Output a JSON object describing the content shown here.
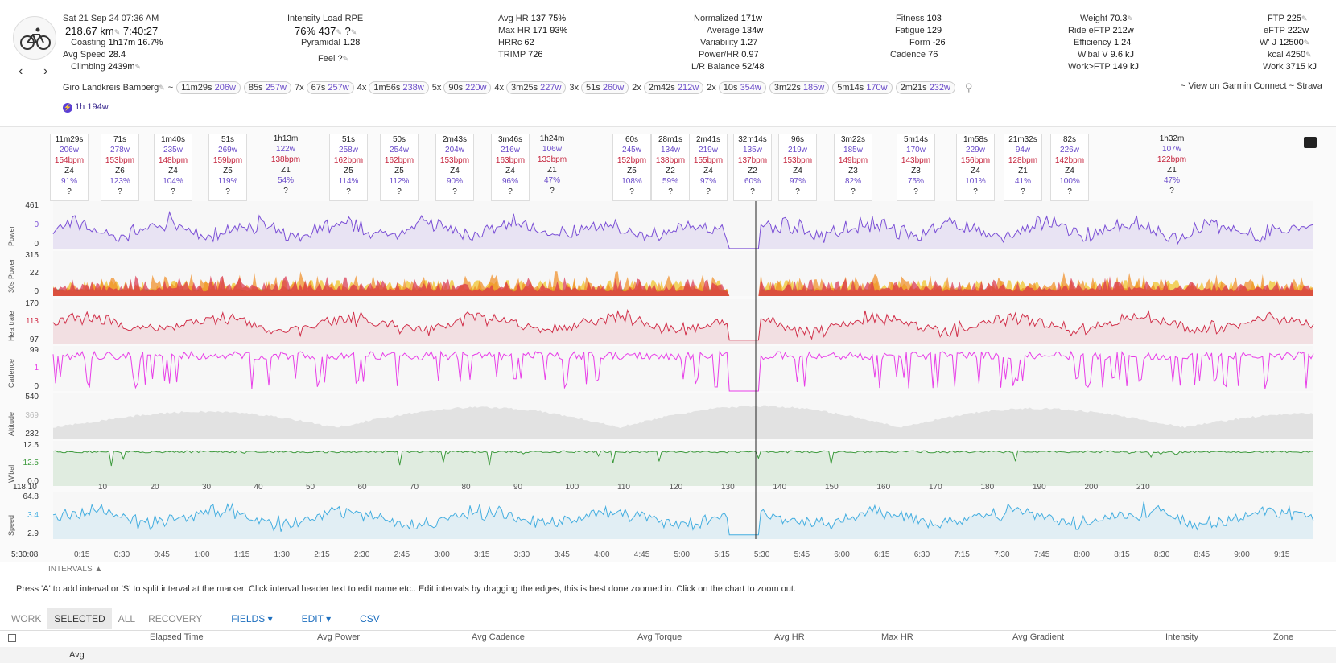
{
  "activity": {
    "date": "Sat 21 Sep 24",
    "time": "07:36 AM",
    "distance": "218.67 km",
    "moving_time": "7:40:27",
    "coasting_label": "Coasting",
    "coasting_time": "1h17m",
    "coasting_pct": "16.7%",
    "avg_speed_label": "Avg Speed",
    "avg_speed": "28.4",
    "climbing_label": "Climbing",
    "climbing": "2439m",
    "name": "Giro Landkreis Bamberg",
    "tilde": "~",
    "badge": "1h 194w"
  },
  "stats": {
    "intensity_label": "Intensity",
    "intensity": "76%",
    "load_label": "Load",
    "load": "437",
    "rpe_label": "RPE",
    "rpe": "?",
    "pyramidal_label": "Pyramidal",
    "pyramidal": "1.28",
    "feel_label": "Feel",
    "feel": "?",
    "avg_hr_label": "Avg HR",
    "avg_hr": "137",
    "avg_hr_pct": "75%",
    "max_hr_label": "Max HR",
    "max_hr": "171",
    "max_hr_pct": "93%",
    "hrrc_label": "HRRc",
    "hrrc": "62",
    "trimp_label": "TRIMP",
    "trimp": "726",
    "normalized_label": "Normalized",
    "normalized": "171w",
    "average_label": "Average",
    "average": "134w",
    "variability_label": "Variability",
    "variability": "1.27",
    "power_hr_label": "Power/HR",
    "power_hr": "0.97",
    "lr_label": "L/R Balance",
    "lr": "52/48",
    "fitness_label": "Fitness",
    "fitness": "103",
    "fatigue_label": "Fatigue",
    "fatigue": "129",
    "form_label": "Form",
    "form": "-26",
    "cadence_label": "Cadence",
    "cadence": "76",
    "weight_label": "Weight",
    "weight": "70.3",
    "ride_eftp_label": "Ride eFTP",
    "ride_eftp": "212w",
    "efficiency_label": "Efficiency",
    "efficiency": "1.24",
    "wbal_label": "W'bal ∇",
    "wbal": "9.6 kJ",
    "work_ftp_label": "Work>FTP",
    "work_ftp": "149 kJ",
    "ftp_label": "FTP",
    "ftp": "225",
    "eftp_label": "eFTP",
    "eftp": "222w",
    "wprime_label": "W' J",
    "wprime": "12500",
    "kcal_label": "kcal",
    "kcal": "4250",
    "work_label": "Work",
    "work": "3715 kJ"
  },
  "chips": [
    {
      "prefix": "",
      "dur": "11m29s",
      "w": "206w"
    },
    {
      "prefix": "",
      "dur": "85s",
      "w": "257w"
    },
    {
      "prefix": "7x",
      "dur": "67s",
      "w": "257w"
    },
    {
      "prefix": "4x",
      "dur": "1m56s",
      "w": "238w"
    },
    {
      "prefix": "5x",
      "dur": "90s",
      "w": "220w"
    },
    {
      "prefix": "4x",
      "dur": "3m25s",
      "w": "227w"
    },
    {
      "prefix": "3x",
      "dur": "51s",
      "w": "260w"
    },
    {
      "prefix": "2x",
      "dur": "2m42s",
      "w": "212w"
    },
    {
      "prefix": "2x",
      "dur": "10s",
      "w": "354w"
    },
    {
      "prefix": "",
      "dur": "3m22s",
      "w": "185w"
    },
    {
      "prefix": "",
      "dur": "5m14s",
      "w": "170w"
    },
    {
      "prefix": "",
      "dur": "2m21s",
      "w": "232w"
    }
  ],
  "links": {
    "view_on": "~ View on Garmin Connect ~ Strava"
  },
  "intervals": [
    {
      "dur": "11m29s",
      "w": "206w",
      "hr": "154bpm",
      "z": "Z4",
      "pct": "91%",
      "q": "?"
    },
    {
      "dur": "71s",
      "w": "278w",
      "hr": "153bpm",
      "z": "Z6",
      "pct": "123%",
      "q": "?"
    },
    {
      "dur": "1m40s",
      "w": "235w",
      "hr": "148bpm",
      "z": "Z4",
      "pct": "104%",
      "q": "?"
    },
    {
      "dur": "51s",
      "w": "269w",
      "hr": "159bpm",
      "z": "Z5",
      "pct": "119%",
      "q": "?"
    },
    {
      "dur": "1h13m",
      "w": "122w",
      "hr": "138bpm",
      "z": "Z1",
      "pct": "54%",
      "q": "?"
    },
    {
      "dur": "51s",
      "w": "258w",
      "hr": "162bpm",
      "z": "Z5",
      "pct": "114%",
      "q": "?"
    },
    {
      "dur": "50s",
      "w": "254w",
      "hr": "162bpm",
      "z": "Z5",
      "pct": "112%",
      "q": "?"
    },
    {
      "dur": "2m43s",
      "w": "204w",
      "hr": "153bpm",
      "z": "Z4",
      "pct": "90%",
      "q": "?"
    },
    {
      "dur": "3m46s",
      "w": "216w",
      "hr": "163bpm",
      "z": "Z4",
      "pct": "96%",
      "q": "?"
    },
    {
      "dur": "1h24m",
      "w": "106w",
      "hr": "133bpm",
      "z": "Z1",
      "pct": "47%",
      "q": "?"
    },
    {
      "dur": "60s",
      "w": "245w",
      "hr": "152bpm",
      "z": "Z5",
      "pct": "108%",
      "q": "?"
    },
    {
      "dur": "28m1s",
      "w": "134w",
      "hr": "138bpm",
      "z": "Z2",
      "pct": "59%",
      "q": "?"
    },
    {
      "dur": "2m41s",
      "w": "219w",
      "hr": "155bpm",
      "z": "Z4",
      "pct": "97%",
      "q": "?"
    },
    {
      "dur": "32m14s",
      "w": "135w",
      "hr": "137bpm",
      "z": "Z2",
      "pct": "60%",
      "q": "?"
    },
    {
      "dur": "96s",
      "w": "219w",
      "hr": "153bpm",
      "z": "Z4",
      "pct": "97%",
      "q": "?"
    },
    {
      "dur": "3m22s",
      "w": "185w",
      "hr": "149bpm",
      "z": "Z3",
      "pct": "82%",
      "q": "?"
    },
    {
      "dur": "5m14s",
      "w": "170w",
      "hr": "143bpm",
      "z": "Z3",
      "pct": "75%",
      "q": "?"
    },
    {
      "dur": "1m58s",
      "w": "229w",
      "hr": "156bpm",
      "z": "Z4",
      "pct": "101%",
      "q": "?"
    },
    {
      "dur": "21m32s",
      "w": "94w",
      "hr": "128bpm",
      "z": "Z1",
      "pct": "41%",
      "q": "?"
    },
    {
      "dur": "82s",
      "w": "226w",
      "hr": "142bpm",
      "z": "Z4",
      "pct": "100%",
      "q": "?"
    },
    {
      "dur": "1h32m",
      "w": "107w",
      "hr": "122bpm",
      "z": "Z1",
      "pct": "47%",
      "q": "?"
    }
  ],
  "lanes": {
    "power": {
      "label": "Power",
      "max": "461",
      "mid": "0",
      "min": "0",
      "color": "#7b4fd6"
    },
    "power30": {
      "label": "30s Power",
      "max": "315",
      "mid": "22",
      "min": "0"
    },
    "heartrate": {
      "label": "Heartrate",
      "max": "170",
      "mid": "113",
      "min": "97",
      "color": "#d1304a"
    },
    "cadence": {
      "label": "Cadence",
      "max": "99",
      "mid": "1",
      "min": "0",
      "color": "#e83ee8"
    },
    "altitude": {
      "label": "Altitude",
      "max": "540",
      "mid": "369",
      "min": "232",
      "color": "#bbbbbb"
    },
    "wbal": {
      "label": "W'bal",
      "max": "12.5",
      "mid": "12.5",
      "min": "0.0",
      "color": "#3d9a3d"
    },
    "speed": {
      "label": "Speed",
      "max": "64.8",
      "mid": "3.4",
      "min": "2.9",
      "color": "#44aee0"
    }
  },
  "distance_axis": {
    "marker": "118.10",
    "ticks": [
      "10",
      "20",
      "30",
      "40",
      "50",
      "60",
      "70",
      "80",
      "90",
      "100",
      "110",
      "120",
      "130",
      "140",
      "150",
      "160",
      "170",
      "180",
      "190",
      "200",
      "210"
    ]
  },
  "time_axis": {
    "marker": "5:30:08",
    "ticks": [
      "0:15",
      "0:30",
      "0:45",
      "1:00",
      "1:15",
      "1:30",
      "2:15",
      "2:30",
      "2:45",
      "3:00",
      "3:15",
      "3:30",
      "3:45",
      "4:00",
      "4:45",
      "5:00",
      "5:15",
      "5:30",
      "5:45",
      "6:00",
      "6:15",
      "6:30",
      "7:15",
      "7:30",
      "7:45",
      "8:00",
      "8:15",
      "8:30",
      "8:45",
      "9:00",
      "9:15"
    ]
  },
  "intervals_toggle": "INTERVALS",
  "help": "Press 'A' to add interval or 'S' to split interval at the marker. Click interval header text to edit name etc.. Edit intervals by dragging the edges, this is best done zoomed in. Click on the chart to zoom out.",
  "tabs": {
    "work": "WORK",
    "selected": "SELECTED",
    "all": "ALL",
    "recovery": "RECOVERY",
    "fields": "FIELDS",
    "edit": "EDIT",
    "csv": "CSV"
  },
  "columns": [
    "Elapsed Time",
    "Avg Power",
    "Avg Cadence",
    "Avg Torque",
    "Avg HR",
    "Max HR",
    "Avg Gradient",
    "Intensity",
    "Zone"
  ],
  "row_label": "Avg"
}
